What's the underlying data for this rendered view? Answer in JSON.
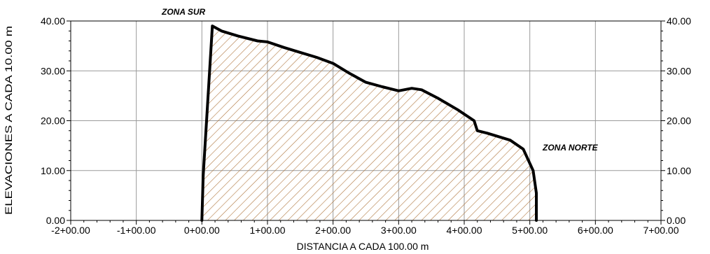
{
  "chart_data": {
    "type": "area",
    "title": "",
    "xlabel": "DISTANCIA A CADA 100.00 m",
    "ylabel": "ELEVACIONES A CADA 10.00 m",
    "xlim": [
      -200,
      700
    ],
    "ylim": [
      0,
      40
    ],
    "grid": true,
    "x_ticks": [
      -200,
      -100,
      0,
      100,
      200,
      300,
      400,
      500,
      600,
      700
    ],
    "x_tick_labels": [
      "-2+00.00",
      "-1+00.00",
      "0+00.00",
      "1+00.00",
      "2+00.00",
      "3+00.00",
      "4+00.00",
      "5+00.00",
      "6+00.00",
      "7+00.00"
    ],
    "y_ticks": [
      0,
      10,
      20,
      30,
      40
    ],
    "y_tick_labels": [
      "0.00",
      "10.00",
      "20.00",
      "30.00",
      "40.00"
    ],
    "fill_pattern": "diagonal hatch",
    "fill_color": "#b07840",
    "line_color": "#000000",
    "series": [
      {
        "x": [
          0,
          2,
          16,
          30,
          55,
          85,
          100,
          125,
          150,
          175,
          200,
          225,
          250,
          275,
          300,
          320,
          335,
          360,
          390,
          415,
          420,
          435,
          470,
          490,
          505,
          510,
          510,
          0
        ],
        "y": [
          0,
          9,
          39,
          38,
          37,
          36,
          35.8,
          34.7,
          33.7,
          32.7,
          31.5,
          29.5,
          27.7,
          26.8,
          26,
          26.5,
          26.2,
          24.5,
          22.2,
          20,
          18,
          17.5,
          16.1,
          14.3,
          10,
          5.5,
          0,
          0
        ]
      }
    ],
    "annotations": [
      {
        "text": "ZONA SUR"
      },
      {
        "text": "ZONA NORTE"
      }
    ]
  }
}
